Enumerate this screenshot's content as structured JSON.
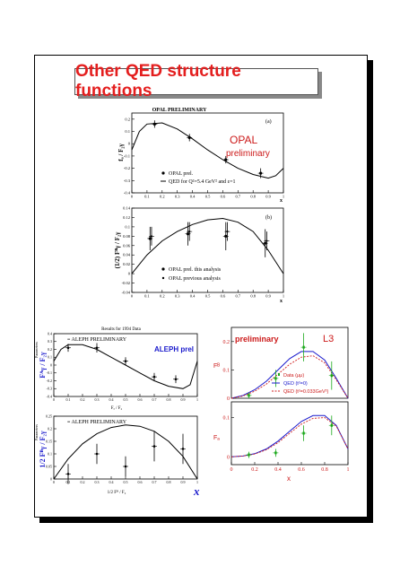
{
  "slide": {
    "title": "Other QED structure functions"
  },
  "opal": {
    "header": "OPAL PRELIMINARY",
    "tag_main": "OPAL",
    "tag_sub": "preliminary",
    "top": {
      "label": "(a)",
      "ylabel": "fₐ / F₂γ",
      "xlabel": "x",
      "legend": [
        "OPAL prel.",
        "QED for Q²=5.4 GeV² and ε=1"
      ],
      "yticks": [
        "0.2",
        "0.1",
        "0",
        "-0.1",
        "-0.2",
        "-0.3",
        "-0.4"
      ],
      "xticks": [
        "0",
        "0.1",
        "0.2",
        "0.3",
        "0.4",
        "0.5",
        "0.6",
        "0.7",
        "0.8",
        "0.9",
        "1"
      ]
    },
    "bottom": {
      "label": "(b)",
      "ylabel": "(1/2) Fᴮγ / F₂γ",
      "xlabel": "x",
      "legend": [
        "OPAL prel. this analysis",
        "OPAL previous analysis"
      ],
      "yticks": [
        "0.14",
        "0.12",
        "0.1",
        "0.08",
        "0.06",
        "0.04",
        "0.02",
        "0",
        "-0.02",
        "-0.04"
      ],
      "xticks": [
        "0",
        "0.1",
        "0.2",
        "0.3",
        "0.4",
        "0.5",
        "0.6",
        "0.7",
        "0.8",
        "0.9",
        "1"
      ]
    }
  },
  "aleph": {
    "header": "Results for 1994 Data",
    "top": {
      "label": "≡ ALEPH PRELIMINARY",
      "tag": "ALEPH prel",
      "ylabel": "Fᴬγ / F₂γ",
      "yname": "Parameters",
      "xlabel": "Fₐ / F₂",
      "yticks": [
        "0.4",
        "0.3",
        "0.2",
        "0.1",
        "0",
        "-0.1",
        "-0.2",
        "-0.3",
        "-0.4"
      ]
    },
    "bottom": {
      "label": "≡ ALEPH PRELIMINARY",
      "ylabel": "1/2 Fᴮγ / F₂γ",
      "yname": "Parameters",
      "xlabel": "1/2 Fᴮ / F₂",
      "xbig": "x",
      "yticks": [
        "0.25",
        "0.2",
        "0.15",
        "0.1",
        "0.05",
        "0"
      ],
      "xticks": [
        "0",
        "0.1",
        "0.2",
        "0.3",
        "0.4",
        "0.5",
        "0.6",
        "0.7",
        "0.8",
        "0.9",
        "1"
      ]
    }
  },
  "l3": {
    "tag": "preliminary",
    "logo": "L3",
    "top": {
      "ylabel": "Fᴮ",
      "yticks": [
        "0.2",
        "0.1",
        "0"
      ],
      "legend": [
        "Data (μμ)",
        "QED (t²=0)",
        "QED (t²=0.033GeV²)"
      ]
    },
    "bottom": {
      "ylabel": "Fₐ",
      "yticks": [
        "0.1",
        "0"
      ],
      "xlabel": "x",
      "xticks": [
        "0",
        "0.2",
        "0.4",
        "0.6",
        "0.8",
        "1"
      ]
    },
    "colors": {
      "data": "#1aa81a",
      "qed0": "#1a1acc",
      "qed1": "#d02020"
    }
  },
  "colors": {
    "title": "#e41e1e",
    "opal_tag": "#cc1a1a",
    "aleph_tag": "#1a1acc",
    "l3_tag": "#cc1a1a"
  },
  "chart_data": [
    {
      "type": "scatter",
      "title": "OPAL PRELIMINARY (a)",
      "xlabel": "x",
      "ylabel": "fₐ / F₂γ",
      "xlim": [
        0,
        1
      ],
      "ylim": [
        -0.4,
        0.25
      ],
      "series": [
        {
          "name": "OPAL prel.",
          "x": [
            0.15,
            0.38,
            0.62,
            0.85
          ],
          "y": [
            0.16,
            0.05,
            -0.13,
            -0.24
          ],
          "err": [
            0.03,
            0.03,
            0.03,
            0.04
          ]
        },
        {
          "name": "QED for Q²=5.4 GeV² and ε=1",
          "x": [
            0,
            0.05,
            0.1,
            0.2,
            0.3,
            0.4,
            0.5,
            0.6,
            0.7,
            0.8,
            0.9,
            0.95,
            1.0
          ],
          "y": [
            -0.05,
            0.1,
            0.16,
            0.17,
            0.12,
            0.04,
            -0.05,
            -0.13,
            -0.2,
            -0.25,
            -0.28,
            -0.26,
            -0.2
          ]
        }
      ]
    },
    {
      "type": "scatter",
      "title": "OPAL PRELIMINARY (b)",
      "xlabel": "x",
      "ylabel": "(1/2) Fᴮγ / F₂γ",
      "xlim": [
        0,
        1
      ],
      "ylim": [
        -0.04,
        0.14
      ],
      "series": [
        {
          "name": "OPAL prel. this analysis",
          "x": [
            0.12,
            0.37,
            0.62,
            0.88
          ],
          "y": [
            0.075,
            0.085,
            0.08,
            0.065
          ],
          "err": [
            0.025,
            0.025,
            0.03,
            0.03
          ]
        },
        {
          "name": "OPAL previous analysis",
          "x": [
            0.13,
            0.38,
            0.63,
            0.89
          ],
          "y": [
            0.08,
            0.09,
            0.09,
            0.07
          ],
          "err": [
            0.02,
            0.02,
            0.02,
            0.02
          ]
        },
        {
          "name": "",
          "x": [
            0,
            0.1,
            0.2,
            0.3,
            0.4,
            0.5,
            0.6,
            0.7,
            0.8,
            0.9,
            1.0
          ],
          "y": [
            0.0,
            0.04,
            0.07,
            0.09,
            0.105,
            0.115,
            0.118,
            0.11,
            0.09,
            0.05,
            0.0
          ]
        }
      ]
    },
    {
      "type": "scatter",
      "title": "Results for 1994 Data",
      "xlabel": "Fₐ / F₂",
      "ylabel": "Parameters",
      "xlim": [
        0,
        1
      ],
      "ylim": [
        -0.4,
        0.4
      ],
      "series": [
        {
          "name": "ALEPH prel",
          "x": [
            0.1,
            0.3,
            0.5,
            0.7,
            0.85
          ],
          "y": [
            0.22,
            0.22,
            0.05,
            -0.15,
            -0.18
          ],
          "err": [
            0.05,
            0.06,
            0.05,
            0.05,
            0.05
          ]
        },
        {
          "name": "",
          "x": [
            0,
            0.05,
            0.1,
            0.2,
            0.3,
            0.4,
            0.5,
            0.6,
            0.7,
            0.8,
            0.9,
            0.95,
            1.0
          ],
          "y": [
            0.05,
            0.2,
            0.26,
            0.26,
            0.2,
            0.1,
            0.0,
            -0.1,
            -0.2,
            -0.27,
            -0.3,
            -0.25,
            0.05
          ]
        }
      ]
    },
    {
      "type": "scatter",
      "title": "ALEPH PRELIMINARY",
      "xlabel": "1/2 Fᴮ / F₂",
      "ylabel": "Parameters",
      "xlim": [
        0,
        1
      ],
      "ylim": [
        0,
        0.25
      ],
      "series": [
        {
          "name": "",
          "x": [
            0.1,
            0.3,
            0.5,
            0.7,
            0.9
          ],
          "y": [
            0.02,
            0.1,
            0.05,
            0.13,
            0.12
          ],
          "err": [
            0.04,
            0.04,
            0.04,
            0.06,
            0.06
          ]
        },
        {
          "name": "",
          "x": [
            0,
            0.1,
            0.2,
            0.3,
            0.4,
            0.5,
            0.6,
            0.7,
            0.8,
            0.9,
            1.0
          ],
          "y": [
            0.0,
            0.08,
            0.14,
            0.18,
            0.205,
            0.215,
            0.21,
            0.19,
            0.15,
            0.09,
            0.0
          ]
        }
      ]
    },
    {
      "type": "line",
      "title": "",
      "xlabel": "x",
      "ylabel": "Fᴮ",
      "xlim": [
        0,
        1
      ],
      "ylim": [
        0,
        0.25
      ],
      "series": [
        {
          "name": "Data (μμ)",
          "x": [
            0.15,
            0.38,
            0.62,
            0.86
          ],
          "y": [
            0.01,
            0.07,
            0.18,
            0.08
          ],
          "err": [
            0.01,
            0.03,
            0.05,
            0.05
          ]
        },
        {
          "name": "QED (t²=0)",
          "x": [
            0,
            0.1,
            0.2,
            0.3,
            0.4,
            0.5,
            0.6,
            0.7,
            0.8,
            0.9,
            1.0
          ],
          "y": [
            0,
            0.01,
            0.03,
            0.06,
            0.1,
            0.14,
            0.165,
            0.165,
            0.135,
            0.07,
            0
          ]
        },
        {
          "name": "QED (t²=0.033GeV²)",
          "x": [
            0,
            0.1,
            0.2,
            0.3,
            0.4,
            0.5,
            0.6,
            0.7,
            0.8,
            0.9,
            1.0
          ],
          "y": [
            0,
            0.008,
            0.025,
            0.05,
            0.085,
            0.12,
            0.145,
            0.15,
            0.125,
            0.065,
            0
          ]
        }
      ]
    },
    {
      "type": "line",
      "title": "",
      "xlabel": "x",
      "ylabel": "Fₐ",
      "xlim": [
        0,
        1
      ],
      "ylim": [
        -0.02,
        0.14
      ],
      "series": [
        {
          "name": "Data (μμ)",
          "x": [
            0.15,
            0.38,
            0.62,
            0.86
          ],
          "y": [
            0.005,
            0.01,
            0.06,
            0.08
          ],
          "err": [
            0.008,
            0.01,
            0.02,
            0.025
          ]
        },
        {
          "name": "QED (t²=0)",
          "x": [
            0,
            0.1,
            0.2,
            0.3,
            0.4,
            0.5,
            0.6,
            0.7,
            0.8,
            0.9,
            1.0
          ],
          "y": [
            0,
            0.002,
            0.008,
            0.02,
            0.04,
            0.065,
            0.09,
            0.105,
            0.105,
            0.08,
            0.02
          ]
        },
        {
          "name": "QED (t²=0.033GeV²)",
          "x": [
            0,
            0.1,
            0.2,
            0.3,
            0.4,
            0.5,
            0.6,
            0.7,
            0.8,
            0.9,
            1.0
          ],
          "y": [
            0,
            0.002,
            0.007,
            0.018,
            0.036,
            0.06,
            0.083,
            0.098,
            0.1,
            0.078,
            0.02
          ]
        }
      ]
    }
  ]
}
